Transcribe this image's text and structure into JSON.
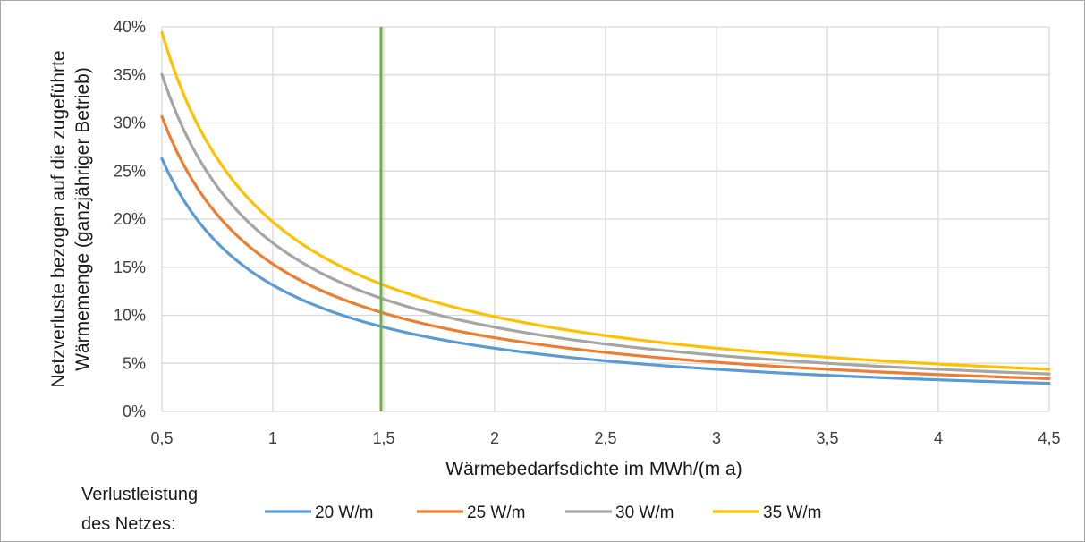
{
  "chart_data": {
    "type": "line",
    "xlabel": "Wärmebedarfsdichte im MWh/(m a)",
    "ylabel_line1": "Netzverluste bezogen auf die zugeführte",
    "ylabel_line2": "Wärmemenge (ganzjähriger Betrieb)",
    "xlim": [
      0.5,
      4.5
    ],
    "ylim": [
      0,
      40
    ],
    "x_ticks": [
      0.5,
      1,
      1.5,
      2,
      2.5,
      3,
      3.5,
      4,
      4.5
    ],
    "x_tick_labels": [
      "0,5",
      "1",
      "1,5",
      "2",
      "2,5",
      "3",
      "3,5",
      "4",
      "4,5"
    ],
    "y_ticks": [
      0,
      5,
      10,
      15,
      20,
      25,
      30,
      35,
      40
    ],
    "y_tick_labels": [
      "0%",
      "5%",
      "10%",
      "15%",
      "20%",
      "25%",
      "30%",
      "35%",
      "40%"
    ],
    "grid": true,
    "legend_title_line1": "Verlustleistung",
    "legend_title_line2": "des Netzes:",
    "legend_position": "bottom",
    "vertical_marker": {
      "x": 1.5,
      "color": "#70ad47"
    },
    "curve_x": [
      0.5,
      0.6,
      0.7,
      0.8,
      0.9,
      1.0,
      1.25,
      1.5,
      1.75,
      2.0,
      2.5,
      3.0,
      3.5,
      4.0,
      4.5
    ],
    "series": [
      {
        "name": "20 W/m",
        "color": "#5b9bd5",
        "loss_factor": 13.14
      },
      {
        "name": "25 W/m",
        "color": "#ed7d31",
        "loss_factor": 15.33
      },
      {
        "name": "30 W/m",
        "color": "#a5a5a5",
        "loss_factor": 17.52
      },
      {
        "name": "35 W/m",
        "color": "#ffc000",
        "loss_factor": 19.71
      }
    ]
  }
}
